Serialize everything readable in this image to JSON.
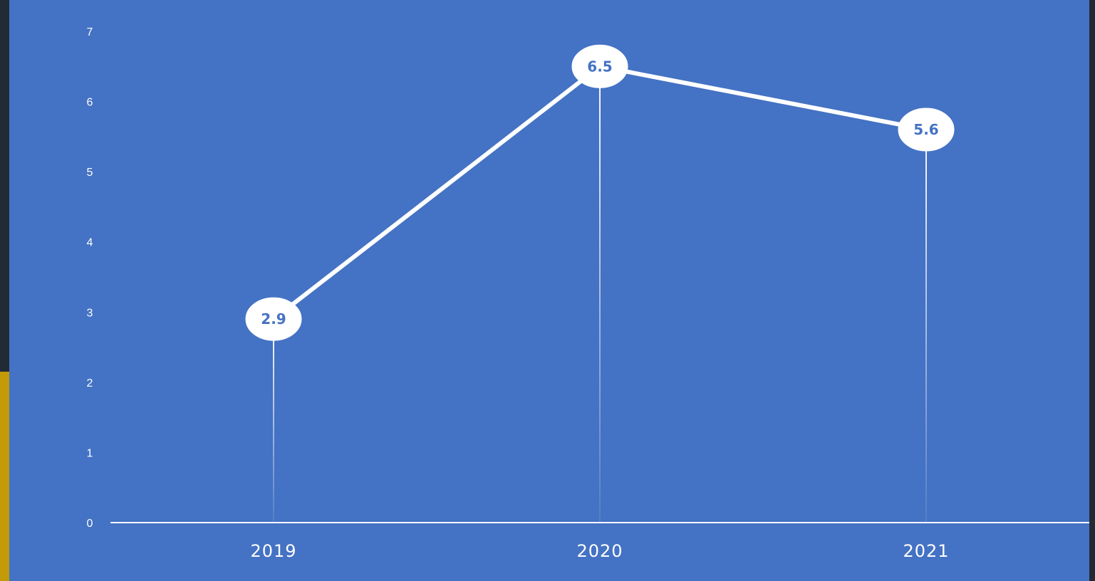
{
  "colors": {
    "background": "#222a35",
    "plot": "#4472c4",
    "accent": "#c39a08",
    "line": "#ffffff",
    "label_text": "#4472c4"
  },
  "chart_data": {
    "type": "line",
    "title": "",
    "xlabel": "",
    "ylabel": "",
    "categories": [
      "2019",
      "2020",
      "2021"
    ],
    "series": [
      {
        "values": [
          2.9,
          6.5,
          5.6
        ],
        "data_labels": [
          "2.9",
          "6.5",
          "5.6"
        ]
      }
    ],
    "ylim": [
      0,
      7
    ],
    "yticks": [
      "0",
      "1",
      "2",
      "3",
      "4",
      "5",
      "6",
      "7"
    ],
    "grid": false,
    "drop_lines": true,
    "legend": "none"
  }
}
